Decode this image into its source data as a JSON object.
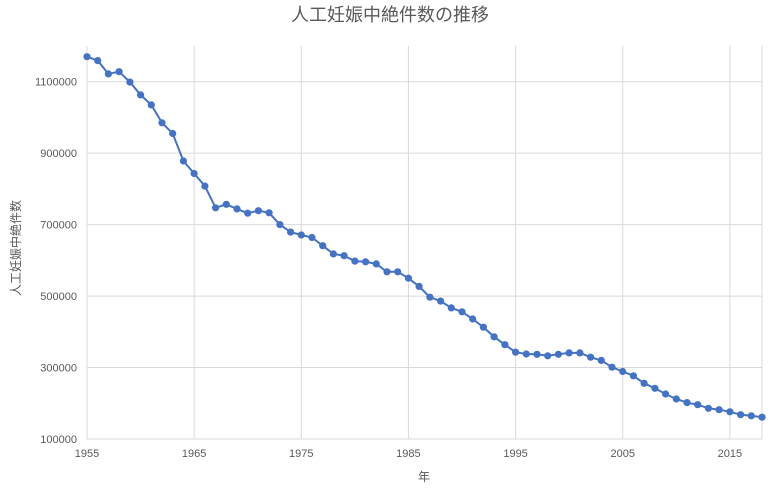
{
  "chart_data": {
    "type": "line",
    "title": "人工妊娠中絶件数の推移",
    "xlabel": "年",
    "ylabel": "人工妊娠中絶件数",
    "xlim": [
      1955,
      2018
    ],
    "ylim": [
      100000,
      1200000
    ],
    "x_ticks": [
      1955,
      1965,
      1975,
      1985,
      1995,
      2005,
      2015
    ],
    "y_ticks": [
      100000,
      300000,
      500000,
      700000,
      900000,
      1100000
    ],
    "grid": true,
    "series": [
      {
        "x": [
          1955,
          1956,
          1957,
          1958,
          1959,
          1960,
          1961,
          1962,
          1963,
          1964,
          1965,
          1966,
          1967,
          1968,
          1969,
          1970,
          1971,
          1972,
          1973,
          1974,
          1975,
          1976,
          1977,
          1978,
          1979,
          1980,
          1981,
          1982,
          1983,
          1984,
          1985,
          1986,
          1987,
          1988,
          1989,
          1990,
          1991,
          1992,
          1993,
          1994,
          1995,
          1996,
          1997,
          1998,
          1999,
          2000,
          2001,
          2002,
          2003,
          2004,
          2005,
          2006,
          2007,
          2008,
          2009,
          2010,
          2011,
          2012,
          2013,
          2014,
          2015,
          2016,
          2017,
          2018
        ],
        "values": [
          1170000,
          1159000,
          1122000,
          1128000,
          1099000,
          1063000,
          1035000,
          985000,
          955000,
          878000,
          843000,
          808000,
          747000,
          757000,
          744000,
          732000,
          739000,
          733000,
          700000,
          679000,
          671000,
          664000,
          641000,
          618000,
          613000,
          598000,
          596000,
          590000,
          568000,
          568000,
          550000,
          527000,
          497000,
          486000,
          467000,
          456000,
          436000,
          413000,
          386000,
          364000,
          343000,
          338000,
          337000,
          333000,
          337000,
          341000,
          341000,
          329000,
          320000,
          301000,
          289000,
          277000,
          256000,
          242000,
          226000,
          212000,
          202000,
          196000,
          186000,
          182000,
          176000,
          168000,
          165000,
          161000
        ]
      }
    ],
    "colors": {
      "series": "#4472c4",
      "grid": "#d9d9d9",
      "text": "#595959"
    }
  }
}
